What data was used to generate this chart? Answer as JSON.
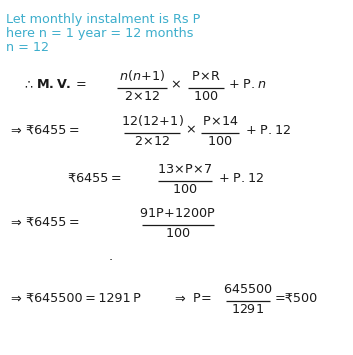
{
  "bg_color": "#ffffff",
  "cyan": "#3daecc",
  "black": "#1a1a1a",
  "figsize": [
    3.53,
    3.55
  ],
  "dpi": 100,
  "lines_cyan": [
    "Let monthly instalment is Rs P",
    "here n = 1 year = 12 months",
    "n = 12"
  ]
}
